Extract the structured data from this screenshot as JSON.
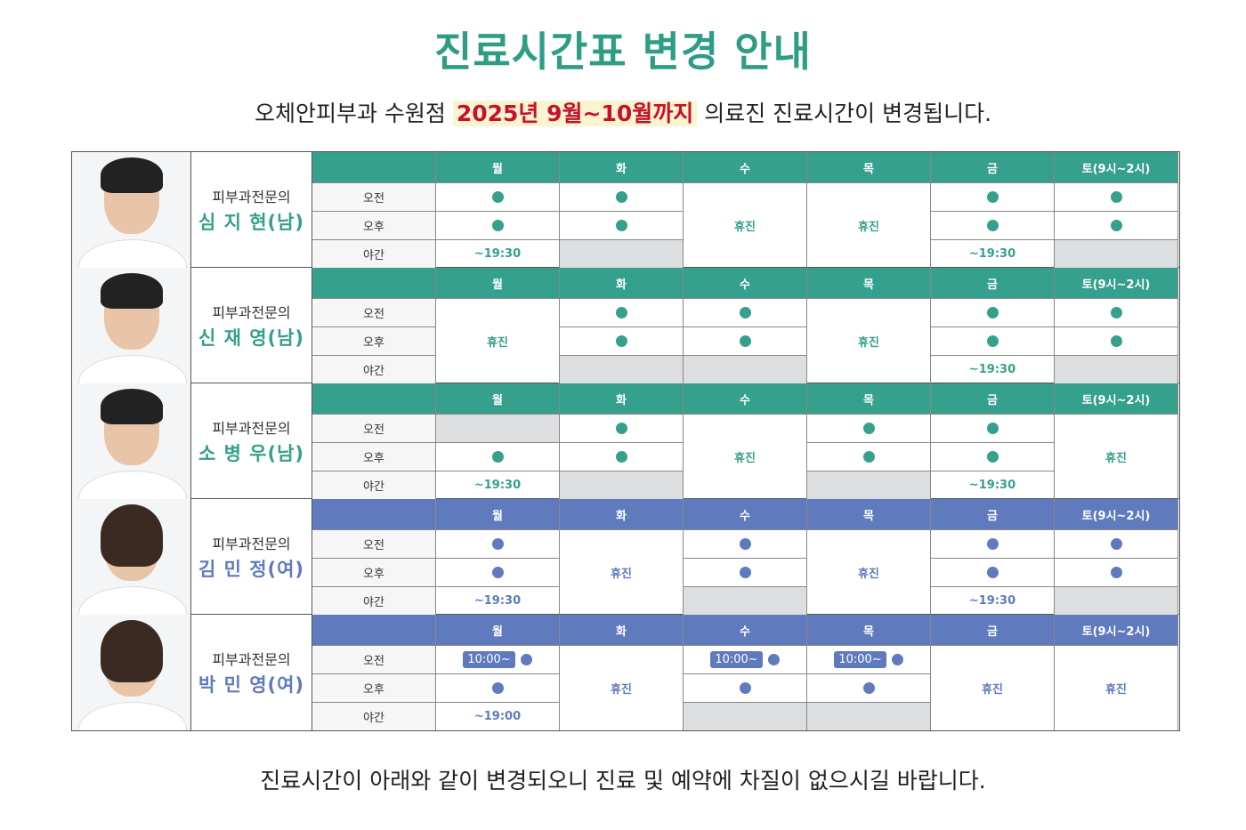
{
  "title": "진료시간표 변경 안내",
  "subtitle": {
    "before": "오체안피부과 수원점",
    "highlight": "2025년 9월~10월까지",
    "after": "의료진 진료시간이 변경됩니다."
  },
  "footer": "진료시간이 아래와 같이 변경되오니 진료 및 예약에 차질이 없으시길 바랍니다.",
  "colors": {
    "green": "#35a08c",
    "blue": "#5f7abd",
    "red": "#c8102e",
    "gray": "#dcdedf"
  },
  "days": [
    "월",
    "화",
    "수",
    "목",
    "금",
    "토(9시~2시)"
  ],
  "slots": [
    "오전",
    "오후",
    "야간"
  ],
  "doctors": [
    {
      "title": "피부과전문의",
      "name": "심 지 현(남)",
      "theme": "green",
      "gender": "m",
      "schedule": [
        [
          "dot",
          "dot",
          "~19:30"
        ],
        [
          "dot",
          "dot",
          "gray"
        ],
        "휴진",
        "휴진",
        [
          "dot",
          "dot",
          "~19:30"
        ],
        [
          "dot",
          "dot",
          "gray"
        ]
      ]
    },
    {
      "title": "피부과전문의",
      "name": "신 재 영(남)",
      "theme": "green",
      "gender": "m",
      "schedule": [
        "휴진",
        [
          "dot",
          "dot",
          "gray"
        ],
        [
          "dot",
          "dot",
          "gray"
        ],
        "휴진",
        [
          "dot",
          "dot",
          "~19:30"
        ],
        [
          "dot",
          "dot",
          "gray"
        ]
      ]
    },
    {
      "title": "피부과전문의",
      "name": "소 병 우(남)",
      "theme": "green",
      "gender": "m",
      "schedule": [
        [
          "gray",
          "dot",
          "~19:30"
        ],
        [
          "dot",
          "dot",
          "gray"
        ],
        "휴진",
        [
          "dot",
          "dot",
          "gray"
        ],
        [
          "dot",
          "dot",
          "~19:30"
        ],
        "휴진"
      ]
    },
    {
      "title": "피부과전문의",
      "name": "김 민 정(여)",
      "theme": "blue",
      "gender": "f",
      "schedule": [
        [
          "dot",
          "dot",
          "~19:30"
        ],
        "휴진",
        [
          "dot",
          "dot",
          "gray"
        ],
        "휴진",
        [
          "dot",
          "dot",
          "~19:30"
        ],
        [
          "dot",
          "dot",
          "gray"
        ]
      ]
    },
    {
      "title": "피부과전문의",
      "name": "박 민 영(여)",
      "theme": "blue",
      "gender": "f",
      "schedule": [
        [
          "badge:10:00~",
          "dot",
          "~19:00"
        ],
        "휴진",
        [
          "badge:10:00~",
          "dot",
          "gray"
        ],
        [
          "badge:10:00~",
          "dot",
          "gray"
        ],
        "휴진",
        "휴진"
      ]
    }
  ]
}
